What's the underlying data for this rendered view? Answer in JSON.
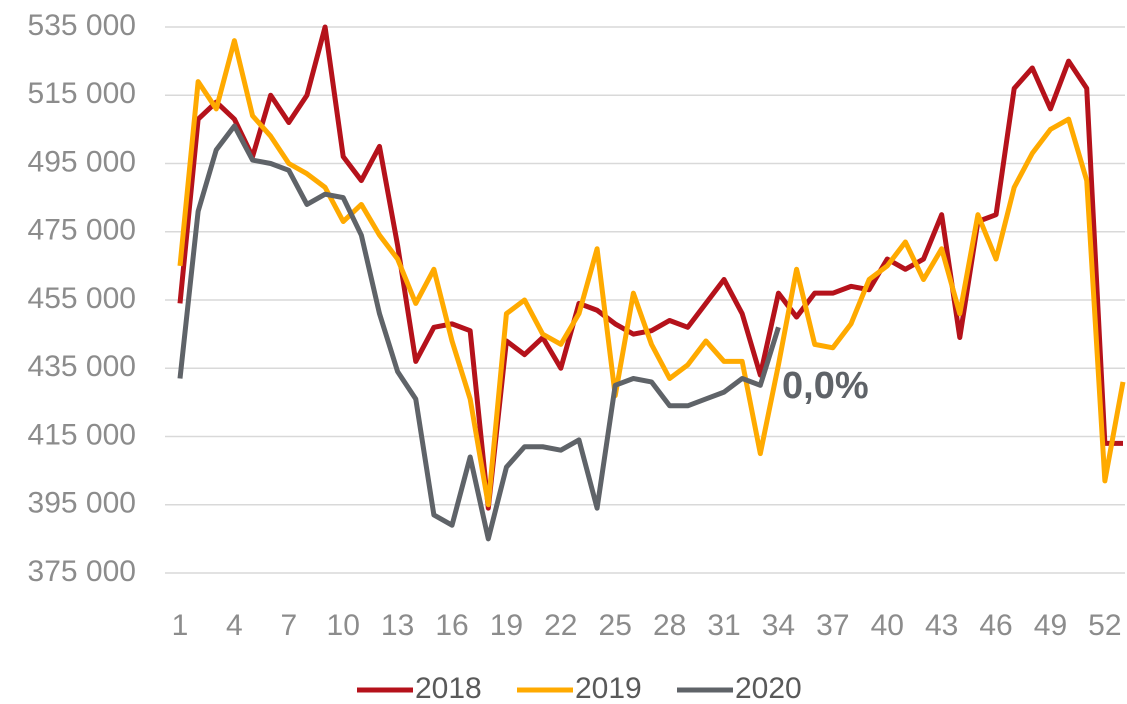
{
  "chart_data": {
    "type": "line",
    "x": [
      1,
      2,
      3,
      4,
      5,
      6,
      7,
      8,
      9,
      10,
      11,
      12,
      13,
      14,
      15,
      16,
      17,
      18,
      19,
      20,
      21,
      22,
      23,
      24,
      25,
      26,
      27,
      28,
      29,
      30,
      31,
      32,
      33,
      34,
      35,
      36,
      37,
      38,
      39,
      40,
      41,
      42,
      43,
      44,
      45,
      46,
      47,
      48,
      49,
      50,
      51,
      52,
      53
    ],
    "xlim": [
      1,
      53
    ],
    "xticks": [
      1,
      4,
      7,
      10,
      13,
      16,
      19,
      22,
      25,
      28,
      31,
      34,
      37,
      40,
      43,
      46,
      49,
      52
    ],
    "ylim": [
      375000,
      535000
    ],
    "yticks": [
      {
        "value": 375000,
        "label": "375 000"
      },
      {
        "value": 395000,
        "label": "395 000"
      },
      {
        "value": 415000,
        "label": "415 000"
      },
      {
        "value": 435000,
        "label": "435 000"
      },
      {
        "value": 455000,
        "label": "455 000"
      },
      {
        "value": 475000,
        "label": "475 000"
      },
      {
        "value": 495000,
        "label": "495 000"
      },
      {
        "value": 515000,
        "label": "515 000"
      },
      {
        "value": 535000,
        "label": "535 000"
      }
    ],
    "grid": true,
    "legend": "bottom",
    "annotation": "0,0%",
    "series": [
      {
        "name": "2018",
        "color": "#b5121b",
        "values": [
          454000,
          508000,
          513000,
          508000,
          497000,
          515000,
          507000,
          515000,
          535000,
          497000,
          490000,
          500000,
          471000,
          437000,
          447000,
          448000,
          446000,
          394000,
          443000,
          439000,
          444000,
          435000,
          454000,
          452000,
          448000,
          445000,
          446000,
          449000,
          447000,
          454000,
          461000,
          451000,
          433000,
          457000,
          450000,
          457000,
          457000,
          459000,
          458000,
          467000,
          464000,
          467000,
          480000,
          444000,
          478000,
          480000,
          517000,
          523000,
          511000,
          525000,
          517000,
          413000,
          413000
        ]
      },
      {
        "name": "2019",
        "color": "#ffaa00",
        "values": [
          465000,
          519000,
          511000,
          531000,
          509000,
          503000,
          495000,
          492000,
          488000,
          478000,
          483000,
          474000,
          467000,
          454000,
          464000,
          443000,
          426000,
          395000,
          451000,
          455000,
          445000,
          442000,
          451000,
          470000,
          427000,
          457000,
          442000,
          432000,
          436000,
          443000,
          437000,
          437000,
          410000,
          436000,
          464000,
          442000,
          441000,
          448000,
          461000,
          465000,
          472000,
          461000,
          470000,
          451000,
          480000,
          467000,
          488000,
          498000,
          505000,
          508000,
          490000,
          402000,
          431000
        ]
      },
      {
        "name": "2020",
        "color": "#5f6368",
        "values": [
          432000,
          481000,
          499000,
          506000,
          496000,
          495000,
          493000,
          483000,
          486000,
          485000,
          474000,
          451000,
          434000,
          426000,
          392000,
          389000,
          409000,
          385000,
          406000,
          412000,
          412000,
          411000,
          414000,
          394000,
          430000,
          432000,
          431000,
          424000,
          424000,
          426000,
          428000,
          432000,
          430000,
          447000,
          null,
          null,
          null,
          null,
          null,
          null,
          null,
          null,
          null,
          null,
          null,
          null,
          null,
          null,
          null,
          null,
          null,
          null,
          null
        ]
      }
    ]
  }
}
